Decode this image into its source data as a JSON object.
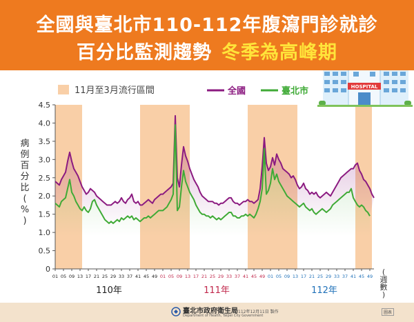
{
  "header": {
    "title_line1": "全國與臺北市110-112年腹瀉門診就診",
    "title_line2_main": "百分比監測趨勢",
    "title_line2_highlight": "冬季為高峰期"
  },
  "hospital_sign": "HOSPITAL",
  "footer": {
    "agency_name": "臺北市政府衛生局",
    "agency_name_en": "Department of Health, Taipei City Government",
    "made_date": "112年12月11日 製作",
    "source_badge": "圖表"
  },
  "colors": {
    "national": "#8b1a80",
    "taipei": "#3faa36",
    "season": "#f9cfa7",
    "header": "#ee7a1f"
  },
  "chart_data": {
    "type": "line",
    "ylabel": "病例百分比(%)",
    "xlabel": "(週數)",
    "ylim": [
      0,
      4.5
    ],
    "yticks": [
      "0",
      "0.5",
      "1.0",
      "1.5",
      "2.0",
      "2.5",
      "3.0",
      "3.5",
      "4.0",
      "4.5"
    ],
    "year_labels": [
      {
        "label": "110年",
        "color": "#222222"
      },
      {
        "label": "111年",
        "color": "#c0264a"
      },
      {
        "label": "112年",
        "color": "#1e70b8"
      }
    ],
    "week_tick_labels": [
      "01",
      "05",
      "09",
      "13",
      "17",
      "21",
      "25",
      "29",
      "33",
      "37",
      "41",
      "45",
      "49",
      "01",
      "05",
      "09",
      "13",
      "17",
      "21",
      "25",
      "29",
      "33",
      "37",
      "41",
      "45",
      "49",
      "01",
      "05",
      "09",
      "13",
      "17",
      "21",
      "25",
      "29",
      "33",
      "37",
      "41",
      "45",
      "49"
    ],
    "legend": {
      "season_label": "11月至3月流行區間",
      "series_names": [
        "全國",
        "臺北市"
      ]
    },
    "season_bands": [
      [
        0,
        13
      ],
      [
        41,
        65
      ],
      [
        93,
        117
      ],
      [
        145,
        153
      ]
    ],
    "series": [
      {
        "name": "全國",
        "color": "#8b1a80",
        "values": [
          2.4,
          2.35,
          2.3,
          2.45,
          2.55,
          2.65,
          2.95,
          3.2,
          2.95,
          2.75,
          2.65,
          2.55,
          2.4,
          2.25,
          2.15,
          2.05,
          2.1,
          2.2,
          2.15,
          2.1,
          2.0,
          1.95,
          1.9,
          1.85,
          1.8,
          1.75,
          1.75,
          1.75,
          1.8,
          1.85,
          1.8,
          1.85,
          1.95,
          1.85,
          1.8,
          1.9,
          1.95,
          2.05,
          1.85,
          1.8,
          1.85,
          1.75,
          1.75,
          1.8,
          1.85,
          1.9,
          1.85,
          1.8,
          1.9,
          1.95,
          2.0,
          2.05,
          2.05,
          2.1,
          2.15,
          2.2,
          2.25,
          2.35,
          4.2,
          2.5,
          2.25,
          2.85,
          3.35,
          3.1,
          2.95,
          2.75,
          2.6,
          2.45,
          2.35,
          2.25,
          2.1,
          2.0,
          1.95,
          1.9,
          1.85,
          1.85,
          1.85,
          1.8,
          1.8,
          1.75,
          1.8,
          1.8,
          1.85,
          1.9,
          1.95,
          1.95,
          1.85,
          1.8,
          1.8,
          1.75,
          1.8,
          1.85,
          1.85,
          1.9,
          1.85,
          1.85,
          1.8,
          1.85,
          1.9,
          2.2,
          2.8,
          3.6,
          2.9,
          2.7,
          2.8,
          3.05,
          2.85,
          3.15,
          3.0,
          2.9,
          2.75,
          2.7,
          2.65,
          2.6,
          2.5,
          2.55,
          2.45,
          2.3,
          2.2,
          2.25,
          2.35,
          2.2,
          2.15,
          2.05,
          2.1,
          2.05,
          2.1,
          2.0,
          1.95,
          2.0,
          2.05,
          2.1,
          2.05,
          2.0,
          2.1,
          2.2,
          2.3,
          2.4,
          2.5,
          2.55,
          2.6,
          2.65,
          2.7,
          2.75,
          2.75,
          2.85,
          2.9,
          2.7,
          2.6,
          2.45,
          2.4,
          2.3,
          2.2,
          2.05,
          1.95
        ]
      },
      {
        "name": "臺北市",
        "color": "#3faa36",
        "values": [
          1.8,
          1.75,
          1.7,
          1.85,
          1.9,
          1.95,
          2.2,
          2.45,
          2.1,
          2.0,
          1.85,
          1.75,
          1.65,
          1.6,
          1.7,
          1.6,
          1.55,
          1.65,
          1.85,
          1.9,
          1.75,
          1.65,
          1.55,
          1.45,
          1.35,
          1.3,
          1.25,
          1.3,
          1.25,
          1.3,
          1.35,
          1.3,
          1.4,
          1.35,
          1.4,
          1.45,
          1.4,
          1.45,
          1.35,
          1.4,
          1.35,
          1.3,
          1.35,
          1.4,
          1.4,
          1.45,
          1.4,
          1.45,
          1.5,
          1.55,
          1.6,
          1.6,
          1.6,
          1.65,
          1.7,
          1.8,
          1.9,
          2.05,
          3.95,
          1.6,
          1.7,
          2.25,
          2.7,
          2.4,
          2.25,
          2.1,
          2.0,
          1.9,
          1.75,
          1.65,
          1.55,
          1.5,
          1.5,
          1.45,
          1.45,
          1.4,
          1.45,
          1.4,
          1.35,
          1.4,
          1.35,
          1.4,
          1.45,
          1.5,
          1.55,
          1.55,
          1.45,
          1.45,
          1.4,
          1.4,
          1.45,
          1.45,
          1.5,
          1.45,
          1.5,
          1.45,
          1.4,
          1.5,
          1.65,
          1.85,
          2.2,
          3.3,
          2.05,
          2.15,
          2.35,
          2.75,
          2.45,
          2.6,
          2.4,
          2.3,
          2.2,
          2.1,
          2.0,
          1.95,
          1.9,
          1.85,
          1.8,
          1.75,
          1.7,
          1.75,
          1.8,
          1.7,
          1.65,
          1.6,
          1.65,
          1.55,
          1.5,
          1.55,
          1.6,
          1.65,
          1.6,
          1.55,
          1.6,
          1.65,
          1.75,
          1.8,
          1.85,
          1.9,
          1.95,
          2.0,
          2.05,
          2.1,
          2.1,
          2.2,
          1.95,
          1.85,
          1.75,
          1.7,
          1.75,
          1.7,
          1.6,
          1.55,
          1.45
        ]
      }
    ]
  }
}
